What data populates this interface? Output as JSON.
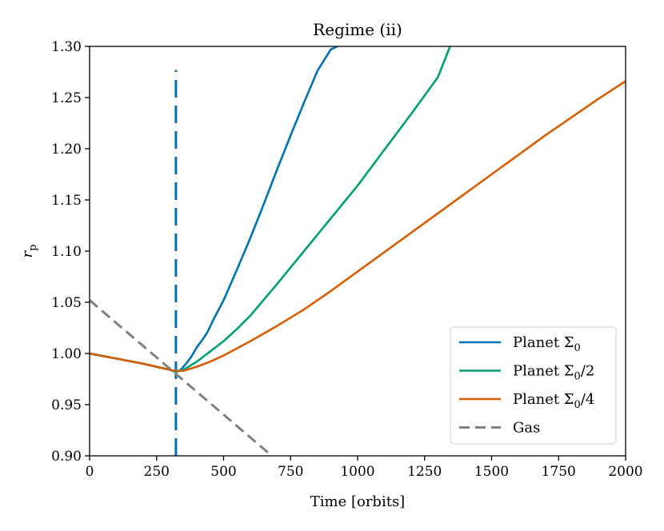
{
  "chart_data": {
    "type": "line",
    "title": "Regime (ii)",
    "xlabel": "Time [orbits]",
    "ylabel": "r_p",
    "ylabel_main": "r",
    "ylabel_sub": "p",
    "xlim": [
      0,
      2000
    ],
    "ylim": [
      0.9,
      1.3
    ],
    "xticks": [
      0,
      250,
      500,
      750,
      1000,
      1250,
      1500,
      1750,
      2000
    ],
    "xtick_labels": [
      "0",
      "250",
      "500",
      "750",
      "1000",
      "1250",
      "1500",
      "1750",
      "2000"
    ],
    "yticks": [
      0.9,
      0.95,
      1.0,
      1.05,
      1.1,
      1.15,
      1.2,
      1.25,
      1.3
    ],
    "ytick_labels": [
      "0.90",
      "0.95",
      "1.00",
      "1.05",
      "1.10",
      "1.15",
      "1.20",
      "1.25",
      "1.30"
    ],
    "grid": false,
    "legend_position": "bottom-right",
    "vline": {
      "x": 322,
      "y_range": [
        0.9,
        1.277
      ],
      "color": "#0072b2",
      "style": "dashed"
    },
    "series": [
      {
        "name": "Planet Σ0",
        "legend_main": "Planet Σ",
        "legend_sub": "0",
        "legend_suffix": "",
        "color": "#0072b2",
        "style": "solid",
        "x": [
          0,
          100,
          200,
          300,
          322,
          340,
          360,
          380,
          400,
          420,
          440,
          460,
          500,
          550,
          600,
          650,
          700,
          750,
          800,
          850,
          900,
          925
        ],
        "y": [
          1.0,
          0.995,
          0.99,
          0.984,
          0.982,
          0.984,
          0.99,
          0.997,
          1.006,
          1.013,
          1.021,
          1.032,
          1.052,
          1.082,
          1.113,
          1.146,
          1.18,
          1.213,
          1.245,
          1.276,
          1.297,
          1.3
        ]
      },
      {
        "name": "Planet Σ0/2",
        "legend_main": "Planet Σ",
        "legend_sub": "0",
        "legend_suffix": "/2",
        "color": "#009e73",
        "style": "solid",
        "x": [
          0,
          100,
          200,
          300,
          322,
          350,
          400,
          450,
          500,
          550,
          600,
          700,
          800,
          900,
          1000,
          1100,
          1200,
          1300,
          1345
        ],
        "y": [
          1.0,
          0.995,
          0.99,
          0.984,
          0.982,
          0.984,
          0.992,
          1.002,
          1.012,
          1.024,
          1.037,
          1.068,
          1.1,
          1.132,
          1.164,
          1.199,
          1.234,
          1.27,
          1.3
        ]
      },
      {
        "name": "Planet Σ0/4",
        "legend_main": "Planet Σ",
        "legend_sub": "0",
        "legend_suffix": "/4",
        "color": "#d55e00",
        "style": "solid",
        "x": [
          0,
          100,
          200,
          300,
          322,
          350,
          400,
          450,
          500,
          600,
          700,
          800,
          900,
          1000,
          1100,
          1200,
          1300,
          1400,
          1500,
          1600,
          1700,
          1800,
          1900,
          2000
        ],
        "y": [
          1.0,
          0.995,
          0.99,
          0.984,
          0.983,
          0.983,
          0.987,
          0.992,
          0.998,
          1.012,
          1.027,
          1.043,
          1.061,
          1.08,
          1.099,
          1.118,
          1.137,
          1.156,
          1.175,
          1.194,
          1.213,
          1.231,
          1.249,
          1.266
        ]
      },
      {
        "name": "Gas",
        "legend_main": "Gas",
        "legend_sub": "",
        "legend_suffix": "",
        "color": "#808080",
        "style": "dashed",
        "x": [
          0,
          680
        ],
        "y": [
          1.052,
          0.9
        ]
      }
    ]
  }
}
